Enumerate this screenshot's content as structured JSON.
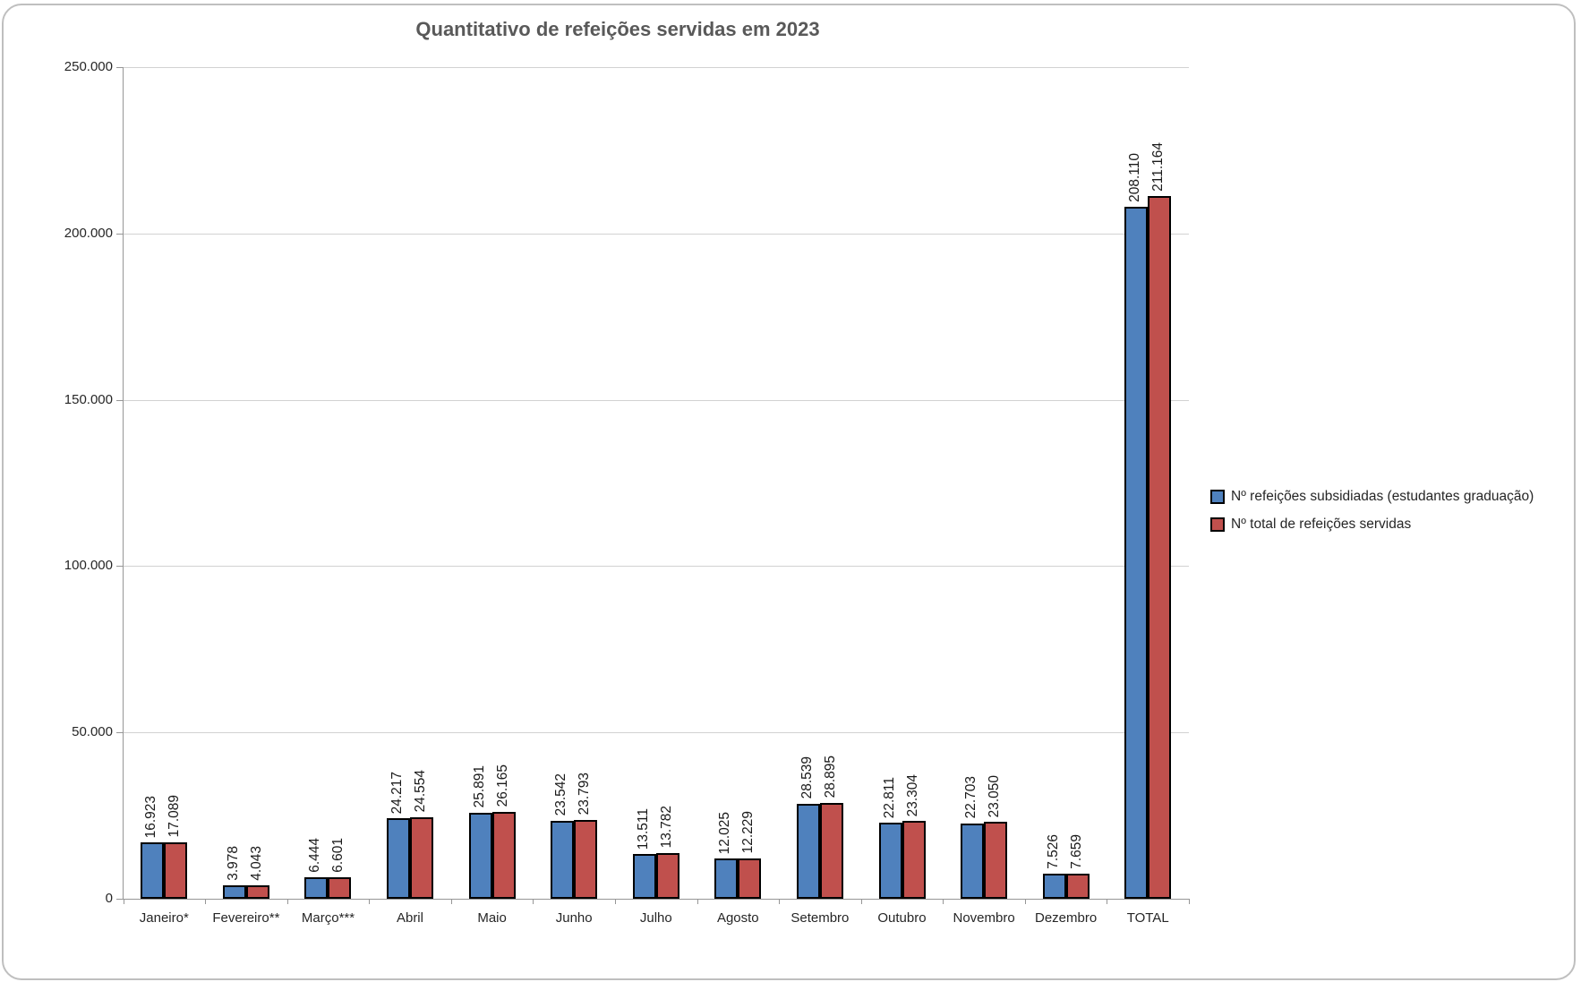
{
  "title": "Quantitativo de refeições servidas em 2023",
  "colors": {
    "series_blue": "#4F81BD",
    "series_red": "#C0504D",
    "bar_border": "#000000",
    "gridline": "#D2D2D2",
    "axis": "#969696",
    "title_text": "#595959",
    "frame_border": "#BFBFBF"
  },
  "legend": {
    "position": "right",
    "entries": [
      {
        "label": "Nº refeições subsidiadas (estudantes graduação)",
        "color": "#4F81BD"
      },
      {
        "label": "Nº total de refeições servidas",
        "color": "#C0504D"
      }
    ]
  },
  "chart_data": {
    "type": "bar",
    "title": "Quantitativo de refeições servidas em 2023",
    "xlabel": "",
    "ylabel": "",
    "grid": true,
    "legend_position": "right",
    "categories": [
      "Janeiro*",
      "Fevereiro**",
      "Março***",
      "Abril",
      "Maio",
      "Junho",
      "Julho",
      "Agosto",
      "Setembro",
      "Outubro",
      "Novembro",
      "Dezembro",
      "TOTAL"
    ],
    "series": [
      {
        "name": "Nº refeições subsidiadas (estudantes graduação)",
        "color": "#4F81BD",
        "values": [
          16923,
          3978,
          6444,
          24217,
          25891,
          23542,
          13511,
          12025,
          28539,
          22811,
          22703,
          7526,
          208110
        ],
        "data_labels": [
          "16.923",
          "3.978",
          "6.444",
          "24.217",
          "25.891",
          "23.542",
          "13.511",
          "12.025",
          "28.539",
          "22.811",
          "22.703",
          "7.526",
          "208.110"
        ]
      },
      {
        "name": "Nº total de refeições servidas",
        "color": "#C0504D",
        "values": [
          17089,
          4043,
          6601,
          24554,
          26165,
          23793,
          13782,
          12229,
          28895,
          23304,
          23050,
          7659,
          211164
        ],
        "data_labels": [
          "17.089",
          "4.043",
          "6.601",
          "24.554",
          "26.165",
          "23.793",
          "13.782",
          "12.229",
          "28.895",
          "23.304",
          "23.050",
          "7.659",
          "211.164"
        ]
      }
    ],
    "y_axis": {
      "min": 0,
      "max": 250000,
      "step": 50000,
      "tick_labels": [
        "0",
        "50.000",
        "100.000",
        "150.000",
        "200.000",
        "250.000"
      ]
    }
  }
}
